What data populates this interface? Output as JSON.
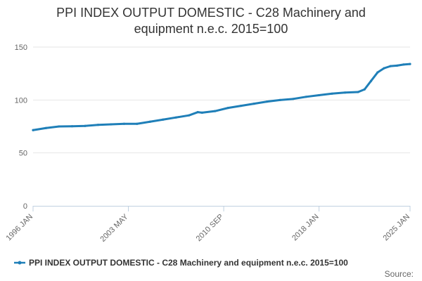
{
  "chart_data": {
    "type": "line",
    "title_lines": [
      "PPI INDEX OUTPUT DOMESTIC - C28 Machinery and",
      "equipment n.e.c. 2015=100"
    ],
    "xlabel": "",
    "ylabel": "",
    "x_range": [
      "1996 JAN",
      "2025 JAN"
    ],
    "x_ticks": [
      "1996 JAN",
      "2003 MAY",
      "2010 SEP",
      "2018 JAN",
      "2025 JAN"
    ],
    "ylim": [
      0,
      150
    ],
    "y_ticks": [
      0,
      50,
      100,
      150
    ],
    "grid": true,
    "legend_position": "bottom",
    "series": [
      {
        "name": "PPI INDEX OUTPUT DOMESTIC - C28 Machinery and equipment n.e.c. 2015=100",
        "color": "#1f7fb8",
        "points": [
          [
            "1996 JAN",
            71.5
          ],
          [
            "1997 JAN",
            73.5
          ],
          [
            "1998 JAN",
            75.0
          ],
          [
            "1999 JAN",
            75.2
          ],
          [
            "2000 JAN",
            75.5
          ],
          [
            "2001 JAN",
            76.5
          ],
          [
            "2002 JAN",
            77.0
          ],
          [
            "2003 JAN",
            77.5
          ],
          [
            "2004 JAN",
            77.5
          ],
          [
            "2005 JAN",
            79.5
          ],
          [
            "2006 JAN",
            81.5
          ],
          [
            "2007 JAN",
            83.5
          ],
          [
            "2008 JAN",
            85.5
          ],
          [
            "2008 SEP",
            88.5
          ],
          [
            "2009 JAN",
            88.0
          ],
          [
            "2010 JAN",
            89.5
          ],
          [
            "2011 JAN",
            92.5
          ],
          [
            "2012 JAN",
            94.5
          ],
          [
            "2013 JAN",
            96.5
          ],
          [
            "2014 JAN",
            98.5
          ],
          [
            "2015 JAN",
            100.0
          ],
          [
            "2016 JAN",
            101.0
          ],
          [
            "2017 JAN",
            103.0
          ],
          [
            "2018 JAN",
            104.5
          ],
          [
            "2019 JAN",
            106.0
          ],
          [
            "2020 JAN",
            107.0
          ],
          [
            "2021 JAN",
            107.5
          ],
          [
            "2021 JUL",
            110.0
          ],
          [
            "2022 JAN",
            118.0
          ],
          [
            "2022 JUL",
            126.0
          ],
          [
            "2023 JAN",
            130.0
          ],
          [
            "2023 JUL",
            132.0
          ],
          [
            "2024 JAN",
            132.5
          ],
          [
            "2024 JUL",
            133.5
          ],
          [
            "2025 JAN",
            134.0
          ]
        ]
      }
    ]
  },
  "footer": {
    "source_label": "Source:"
  }
}
